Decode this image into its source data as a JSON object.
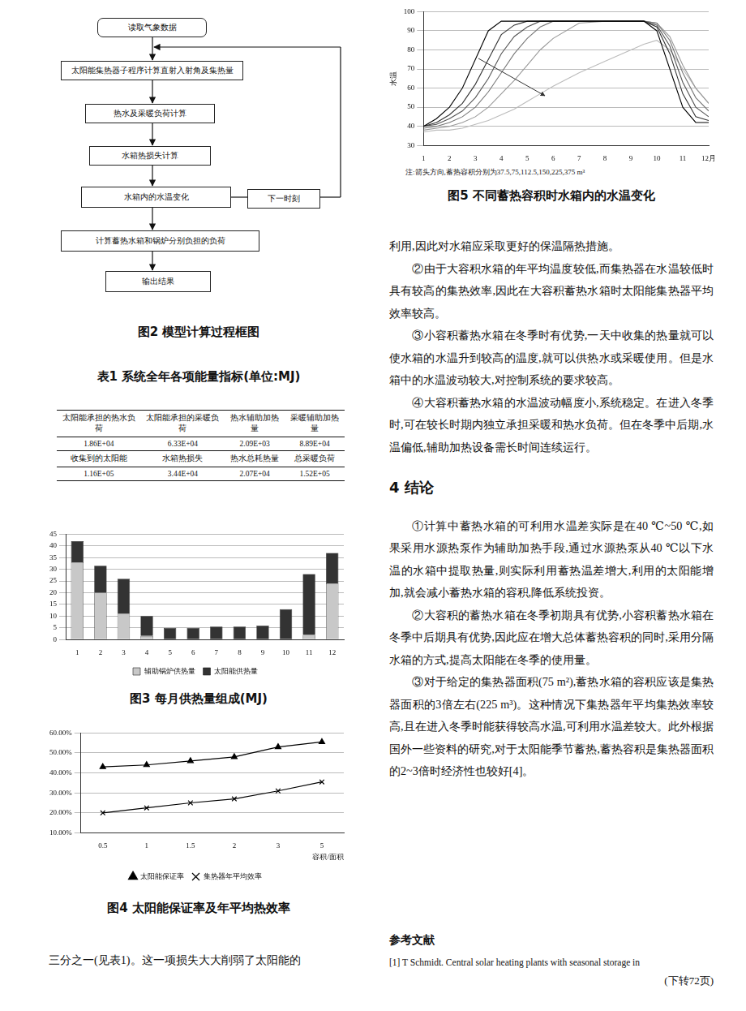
{
  "flowchart": {
    "nodes": [
      "读取气象数据",
      "太阳能集热器子程序计算直射入射角及集热量",
      "热水及采暖负荷计算",
      "水箱热损失计算",
      "水箱内的水温变化",
      "计算蓄热水箱和锅炉分别负担的负荷",
      "输出结果"
    ],
    "loop_node": "下一时刻",
    "caption": "图2  模型计算过程框图"
  },
  "table": {
    "caption": "表1  系统全年各项能量指标(单位:MJ)",
    "rows": [
      [
        "太阳能承担的热水负荷",
        "太阳能承担的采暖负荷",
        "热水辅助加热量",
        "采暖辅助加热量"
      ],
      [
        "1.86E+04",
        "6.33E+04",
        "2.09E+03",
        "8.89E+04"
      ],
      [
        "收集到的太阳能",
        "水箱热损失",
        "热水总耗热量",
        "总采暖负荷"
      ],
      [
        "1.16E+05",
        "3.44E+04",
        "2.07E+04",
        "1.52E+05"
      ]
    ]
  },
  "chart_data": [
    {
      "type": "bar",
      "title": "图3  每月供热量组成(MJ)",
      "categories": [
        "1",
        "2",
        "3",
        "4",
        "5",
        "6",
        "7",
        "8",
        "9",
        "10",
        "11",
        "12"
      ],
      "series": [
        {
          "name": "辅助锅炉供热量",
          "color": "#c8c8c8",
          "values": [
            33,
            20,
            11,
            1.5,
            0,
            0,
            0,
            0,
            0,
            0,
            2,
            24
          ]
        },
        {
          "name": "太阳能供热量",
          "color": "#333333",
          "values": [
            9,
            11.5,
            15,
            8.5,
            5,
            5,
            5.5,
            5.5,
            6,
            13,
            26,
            13
          ]
        }
      ],
      "stacked": true,
      "ylim": [
        0,
        45
      ],
      "yticks": [
        0,
        5,
        10,
        15,
        20,
        25,
        30,
        35,
        40,
        45
      ],
      "grid": true,
      "legend": "bottom"
    },
    {
      "type": "line",
      "title": "图4  太阳能保证率及年平均热效率",
      "x_label": "容积/面积",
      "categories": [
        "0.5",
        "1",
        "1.5",
        "2",
        "3",
        "5"
      ],
      "series": [
        {
          "name": "太阳能保证率",
          "color": "#000000",
          "marker": "triangle",
          "values": [
            43,
            44,
            46,
            48,
            53,
            55.5
          ]
        },
        {
          "name": "集热器年平均效率",
          "color": "#000000",
          "marker": "x",
          "values": [
            20,
            22.5,
            25,
            27,
            31,
            35.5
          ]
        }
      ],
      "ylim": [
        10,
        60
      ],
      "yticks": [
        {
          "value": 10,
          "label": "10.00%"
        },
        {
          "value": 20,
          "label": "20.00%"
        },
        {
          "value": 30,
          "label": "30.00%"
        },
        {
          "value": 40,
          "label": "40.00%"
        },
        {
          "value": 50,
          "label": "50.00%"
        },
        {
          "value": 60,
          "label": "60.00%"
        }
      ],
      "grid": true,
      "legend": "bottom"
    },
    {
      "type": "line",
      "title": "图5  不同蓄热容积时水箱内的水温变化",
      "y_label": "水温",
      "annotations": [
        "注:箭头方向,蓄热容积分别为37.5,75,112.5,150,225,375 m³"
      ],
      "x": [
        1,
        1.5,
        2,
        2.5,
        3,
        3.5,
        4,
        4.5,
        5,
        5.5,
        6,
        7,
        8,
        9,
        9.5,
        10,
        10.5,
        11,
        11.5,
        12
      ],
      "series": [
        {
          "name": "37.5",
          "color": "#000000",
          "values": [
            40,
            44,
            50,
            60,
            75,
            90,
            95,
            95,
            95,
            95,
            95,
            95,
            95,
            95,
            95,
            90,
            70,
            50,
            42,
            42
          ]
        },
        {
          "name": "75",
          "color": "#333333",
          "values": [
            40,
            42,
            46,
            52,
            62,
            75,
            88,
            93,
            95,
            95,
            95,
            95,
            95,
            95,
            95,
            92,
            78,
            57,
            45,
            43
          ]
        },
        {
          "name": "112.5",
          "color": "#555555",
          "values": [
            40,
            41,
            44,
            48,
            55,
            65,
            78,
            87,
            92,
            95,
            95,
            95,
            95,
            95,
            95,
            93,
            82,
            63,
            50,
            45
          ]
        },
        {
          "name": "150",
          "color": "#777777",
          "values": [
            39,
            40,
            42,
            45,
            50,
            58,
            68,
            78,
            86,
            92,
            95,
            95,
            95,
            95,
            95,
            94,
            85,
            68,
            55,
            48
          ]
        },
        {
          "name": "225",
          "color": "#999999",
          "values": [
            38,
            39,
            40,
            42,
            45,
            50,
            57,
            64,
            72,
            80,
            86,
            94,
            95,
            95,
            95,
            94,
            87,
            72,
            60,
            52
          ]
        },
        {
          "name": "375",
          "color": "#bbbbbb",
          "values": [
            37,
            38,
            38,
            39,
            41,
            43,
            46,
            49,
            53,
            57,
            61,
            68,
            74,
            80,
            83,
            85,
            80,
            70,
            60,
            52
          ]
        }
      ],
      "xlim": [
        1,
        12
      ],
      "xticks": [
        1,
        2,
        3,
        4,
        5,
        6,
        7,
        8,
        9,
        10,
        11,
        {
          "value": 12,
          "label": "12月"
        }
      ],
      "ylim": [
        30,
        100
      ],
      "yticks": [
        30,
        40,
        50,
        60,
        70,
        80,
        90,
        100
      ],
      "grid": true
    }
  ],
  "left_text": "三分之一(见表1)。这一项损失大大削弱了太阳能的",
  "right_text": {
    "paragraphs": [
      "利用,因此对水箱应采取更好的保温隔热措施。",
      "②由于大容积水箱的年平均温度较低,而集热器在水温较低时具有较高的集热效率,因此在大容积蓄热水箱时太阳能集热器平均效率较高。",
      "③小容积蓄热水箱在冬季时有优势,一天中收集的热量就可以使水箱的水温升到较高的温度,就可以供热水或采暖使用。但是水箱中的水温波动较大,对控制系统的要求较高。",
      "④大容积蓄热水箱的水温波动幅度小,系统稳定。在进入冬季时,可在较长时期内独立承担采暖和热水负荷。但在冬季中后期,水温偏低,辅助加热设备需长时间连续运行。"
    ],
    "heading": "4  结论",
    "conclusions": [
      "①计算中蓄热水箱的可利用水温差实际是在40 ℃~50 ℃,如果采用水源热泵作为辅助加热手段,通过水源热泵从40 ℃以下水温的水箱中提取热量,则实际利用蓄热温差增大,利用的太阳能增加,就会减小蓄热水箱的容积,降低系统投资。",
      "②大容积的蓄热水箱在冬季初期具有优势,小容积蓄热水箱在冬季中后期具有优势,因此应在增大总体蓄热容积的同时,采用分隔水箱的方式,提高太阳能在冬季的使用量。",
      "③对于给定的集热器面积(75 m²),蓄热水箱的容积应该是集热器面积的3倍左右(225 m³)。这种情况下集热器年平均集热效率较高,且在进入冬季时能获得较高水温,可利用水温差较大。此外根据国外一些资料的研究,对于太阳能季节蓄热,蓄热容积是集热器面积的2~3倍时经济性也较好[4]。"
    ]
  },
  "references": {
    "heading": "参考文献",
    "items": [
      "[1]  T Schmidt. Central solar heating plants with seasonal storage in"
    ],
    "continued": "(下转72页)"
  }
}
